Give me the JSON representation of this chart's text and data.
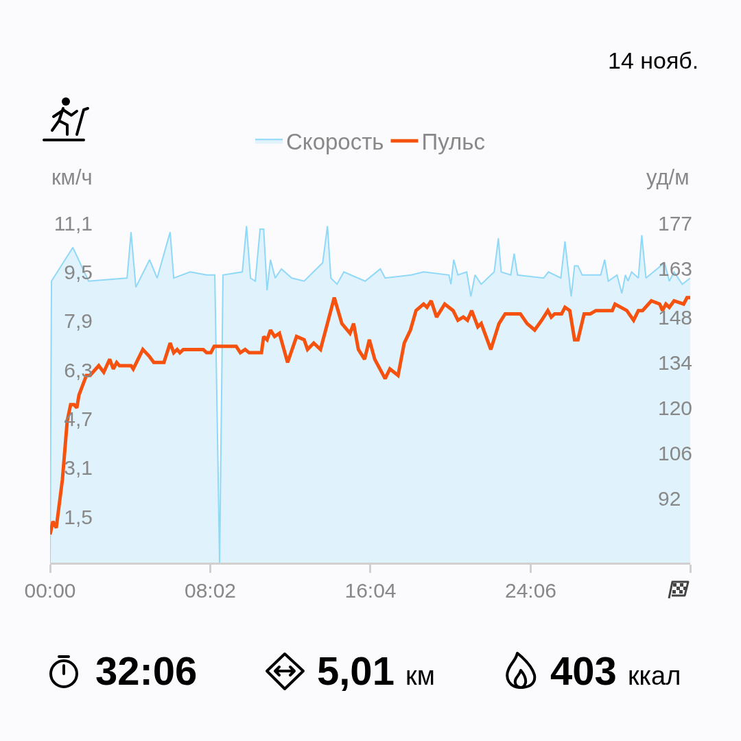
{
  "chart_data": {
    "type": "line",
    "xlabel": null,
    "ylabel": "км/ч",
    "y2label": "уд/м",
    "xlim": [
      0,
      32.1
    ],
    "xticks": [
      {
        "value": 0,
        "label": "00:00"
      },
      {
        "value": 8.033,
        "label": "08:02"
      },
      {
        "value": 16.067,
        "label": "16:04"
      },
      {
        "value": 24.1,
        "label": "24:06"
      },
      {
        "value": 32.1,
        "label": null
      }
    ],
    "ylim": [
      0,
      11.1
    ],
    "yticks": [
      {
        "value": 1.5,
        "label": "1,5"
      },
      {
        "value": 3.1,
        "label": "3,1"
      },
      {
        "value": 4.7,
        "label": "4,7"
      },
      {
        "value": 6.3,
        "label": "6,3"
      },
      {
        "value": 7.9,
        "label": "7,9"
      },
      {
        "value": 9.5,
        "label": "9,5"
      },
      {
        "value": 11.1,
        "label": "11,1"
      }
    ],
    "y2lim": [
      72.3,
      177
    ],
    "y2ticks": [
      92,
      106,
      120,
      134,
      148,
      163,
      177
    ],
    "grid": false,
    "legend": "top",
    "annotations": [
      "14 нояб.",
      "32:06",
      "5,01 км",
      "403 ккал"
    ],
    "series": [
      {
        "name": "Скорость",
        "type": "area",
        "color": "#8fd8f7",
        "x": [
          0,
          0.07,
          1.14,
          1.93,
          3.86,
          4.06,
          4.3,
          4.99,
          5.37,
          6.02,
          6.2,
          7.02,
          7.85,
          8.26,
          8.5,
          8.67,
          9.64,
          9.85,
          10.05,
          10.29,
          10.53,
          10.71,
          10.88,
          11.05,
          11.29,
          11.6,
          12.12,
          12.74,
          13.67,
          13.91,
          14.08,
          14.39,
          14.73,
          15.8,
          16.56,
          16.8,
          18.11,
          18.73,
          20,
          20.1,
          20.24,
          20.45,
          20.89,
          21.1,
          21.31,
          21.62,
          22.27,
          22.48,
          22.62,
          23.1,
          23.27,
          23.44,
          24.75,
          24.99,
          25.61,
          25.82,
          26.13,
          26.3,
          26.47,
          26.68,
          27.61,
          27.81,
          27.99,
          28.43,
          28.67,
          28.85,
          28.98,
          29.16,
          29.5,
          29.67,
          29.88,
          30.81,
          31.05,
          31.29,
          31.7,
          32.1
        ],
        "values": [
          0,
          9.2,
          10.3,
          9.2,
          9.3,
          10.8,
          9.0,
          9.9,
          9.3,
          10.8,
          9.3,
          9.5,
          9.4,
          9.4,
          0,
          9.4,
          9.5,
          11.0,
          9.3,
          9.2,
          10.9,
          10.9,
          8.9,
          9.9,
          9.3,
          9.6,
          9.3,
          9.2,
          9.8,
          11.0,
          9.3,
          9.1,
          9.5,
          9.2,
          9.6,
          9.3,
          9.4,
          9.5,
          9.4,
          9.1,
          9.9,
          9.4,
          9.5,
          8.7,
          9.4,
          9.1,
          9.5,
          10.6,
          9.5,
          9.4,
          10.1,
          9.4,
          9.3,
          9.5,
          9.3,
          10.5,
          8.7,
          9.7,
          9.7,
          9.4,
          9.4,
          9.9,
          9.2,
          9.4,
          8.8,
          9.4,
          9.2,
          9.5,
          9.3,
          10.7,
          9.3,
          9.8,
          9.2,
          9.5,
          9.1,
          9.3
        ]
      },
      {
        "name": "Пульс",
        "type": "line",
        "axis": "y2",
        "color": "#f5520f",
        "x": [
          0,
          0.14,
          0.31,
          0.62,
          0.86,
          1.03,
          1.2,
          1.34,
          1.45,
          1.82,
          2,
          2.44,
          2.69,
          2.99,
          3.17,
          3.34,
          3.48,
          4.06,
          4.17,
          4.41,
          4.65,
          4.96,
          5.2,
          5.71,
          6.02,
          6.2,
          6.37,
          6.51,
          6.68,
          7.68,
          7.85,
          8.06,
          8.23,
          9.33,
          9.54,
          9.78,
          9.98,
          10.6,
          10.71,
          10.88,
          11.05,
          11.26,
          11.5,
          11.91,
          12.36,
          12.74,
          12.91,
          13.22,
          13.56,
          14.25,
          14.63,
          15.04,
          15.22,
          15.46,
          15.77,
          16.01,
          16.28,
          16.8,
          17.04,
          17.45,
          17.76,
          18.07,
          18.35,
          18.73,
          18.9,
          19.11,
          19.38,
          19.79,
          20.21,
          20.45,
          20.72,
          20.93,
          21.14,
          21.45,
          21.62,
          22.1,
          22.51,
          22.82,
          23.1,
          23.58,
          23.92,
          24.3,
          24.65,
          24.96,
          25.13,
          25.3,
          25.65,
          25.82,
          26.06,
          26.3,
          26.47,
          26.78,
          27.09,
          27.37,
          27.75,
          28.19,
          28.33,
          28.92,
          29.26,
          29.5,
          29.71,
          30.15,
          30.57,
          30.71,
          30.88,
          31.05,
          31.29,
          31.77,
          31.94,
          32.1
        ],
        "values": [
          81,
          85,
          83,
          98,
          116,
          121,
          121,
          120,
          124,
          130,
          130,
          133,
          131,
          135,
          132,
          134,
          133,
          133,
          132,
          135,
          138,
          136,
          134,
          134,
          140,
          137,
          138,
          137,
          138,
          138,
          137,
          137,
          139,
          139,
          137,
          138,
          137,
          137,
          142,
          141,
          144,
          142,
          143,
          134,
          142,
          141,
          138,
          140,
          138,
          154,
          146,
          143,
          146,
          138,
          135,
          141,
          135,
          129,
          132,
          130,
          140,
          144,
          150,
          152,
          151,
          153,
          148,
          152,
          150,
          147,
          148,
          147,
          150,
          145,
          146,
          138,
          146,
          149,
          149,
          149,
          146,
          144,
          147,
          150,
          148,
          149,
          149,
          151,
          150,
          141,
          141,
          149,
          149,
          150,
          150,
          150,
          152,
          150,
          147,
          150,
          150,
          153,
          152,
          150,
          152,
          151,
          153,
          152,
          154,
          154
        ]
      }
    ]
  }
}
